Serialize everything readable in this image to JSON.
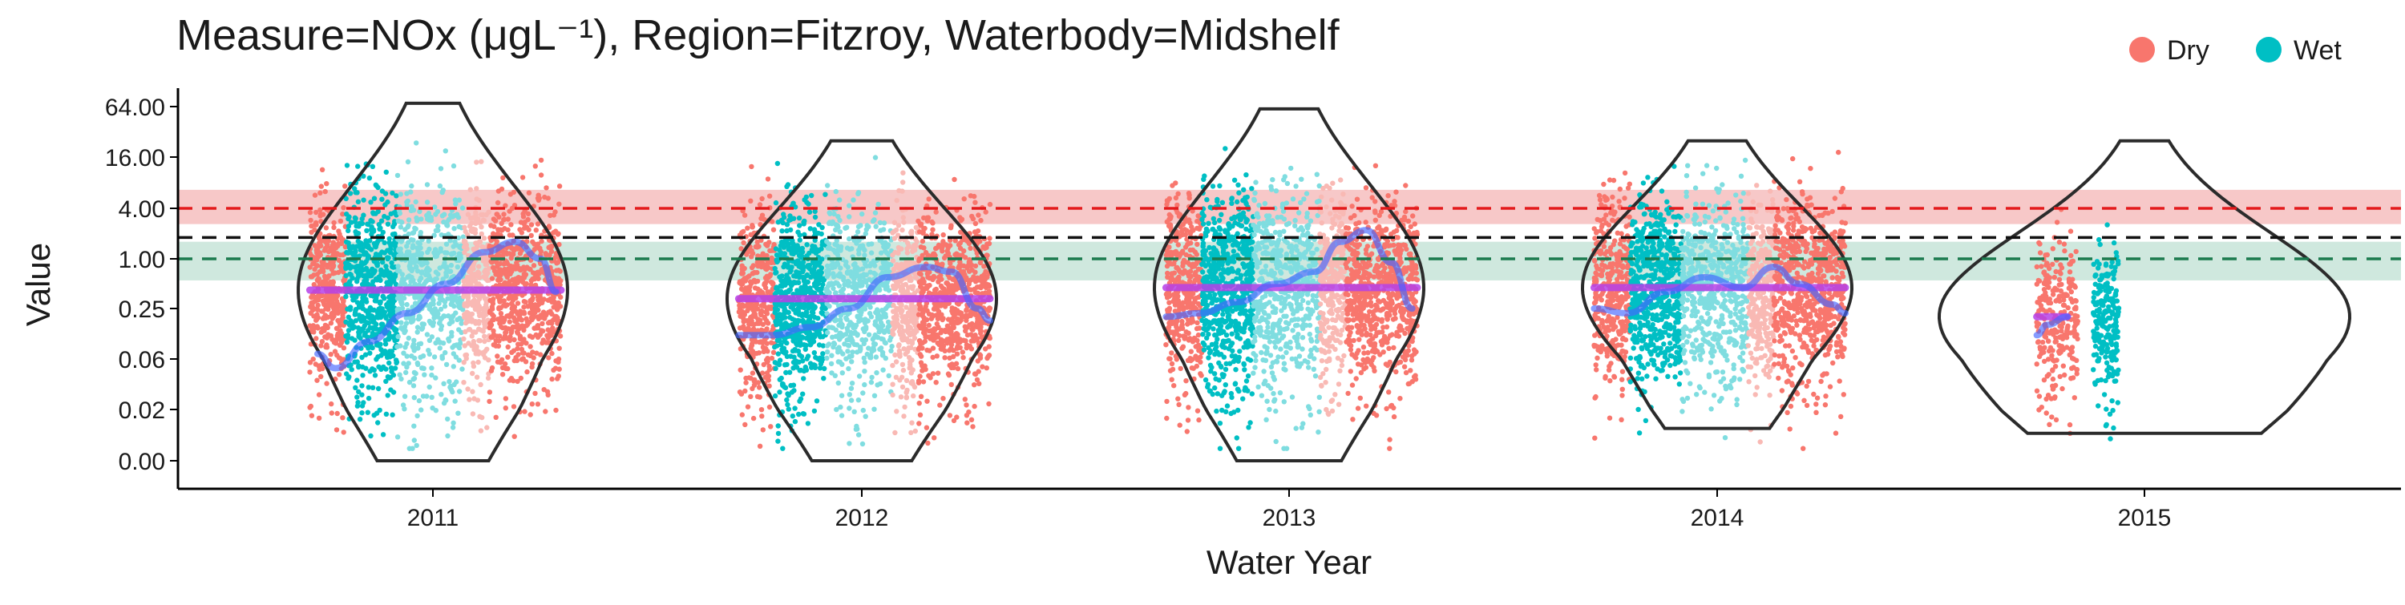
{
  "chart_data": {
    "type": "scatter",
    "title": "Measure=NOx (μgL⁻¹), Region=Fitzroy, Waterbody=Midshelf",
    "xlabel": "Water Year",
    "ylabel": "Value",
    "y_scale": "log4-like (pseudo-log)",
    "y_ticks": [
      "0.00",
      "0.02",
      "0.06",
      "0.25",
      "1.00",
      "4.00",
      "16.00",
      "64.00"
    ],
    "y_tick_values": [
      0,
      0.02,
      0.06,
      0.25,
      1,
      4,
      16,
      64
    ],
    "categories": [
      "2011",
      "2012",
      "2013",
      "2014",
      "2015"
    ],
    "legend": {
      "position": "top-right",
      "entries": [
        {
          "label": "Dry",
          "color": "#F8766D"
        },
        {
          "label": "Wet",
          "color": "#00BFC4"
        }
      ]
    },
    "guidelines": [
      {
        "kind": "dashed",
        "value": 4.0,
        "color": "#e31a1c",
        "band": [
          2.6,
          6.6
        ],
        "band_color": "#f4b6b6"
      },
      {
        "kind": "dashed",
        "value": 1.8,
        "color": "#111111"
      },
      {
        "kind": "dashed",
        "value": 1.0,
        "color": "#1b7a4e",
        "band": [
          0.55,
          1.6
        ],
        "band_color": "#bfe0d3"
      }
    ],
    "series": [
      {
        "year": "2011",
        "median": 0.42,
        "wet_range": [
          0.003,
          70
        ],
        "dry_range": [
          0.003,
          30
        ],
        "violin_range": [
          0.0,
          70
        ],
        "trend": [
          [
            -0.45,
            0.07
          ],
          [
            -0.38,
            0.05
          ],
          [
            -0.25,
            0.1
          ],
          [
            -0.1,
            0.22
          ],
          [
            0.05,
            0.5
          ],
          [
            0.2,
            1.2
          ],
          [
            0.32,
            1.6
          ],
          [
            0.42,
            1.0
          ],
          [
            0.48,
            0.4
          ]
        ]
      },
      {
        "year": "2012",
        "median": 0.33,
        "wet_range": [
          0.003,
          35
        ],
        "dry_range": [
          0.003,
          25
        ],
        "violin_range": [
          0.0,
          25
        ],
        "trend": [
          [
            -0.48,
            0.12
          ],
          [
            -0.35,
            0.12
          ],
          [
            -0.2,
            0.15
          ],
          [
            -0.05,
            0.25
          ],
          [
            0.1,
            0.6
          ],
          [
            0.25,
            0.8
          ],
          [
            0.35,
            0.7
          ],
          [
            0.45,
            0.25
          ],
          [
            0.5,
            0.18
          ]
        ]
      },
      {
        "year": "2013",
        "median": 0.45,
        "wet_range": [
          0.003,
          80
        ],
        "dry_range": [
          0.003,
          30
        ],
        "violin_range": [
          0.0,
          60
        ],
        "trend": [
          [
            -0.48,
            0.2
          ],
          [
            -0.35,
            0.22
          ],
          [
            -0.2,
            0.3
          ],
          [
            -0.05,
            0.5
          ],
          [
            0.1,
            0.7
          ],
          [
            0.2,
            1.6
          ],
          [
            0.3,
            2.2
          ],
          [
            0.4,
            0.9
          ],
          [
            0.48,
            0.25
          ]
        ]
      },
      {
        "year": "2014",
        "median": 0.45,
        "wet_range": [
          0.003,
          25
        ],
        "dry_range": [
          0.003,
          30
        ],
        "violin_range": [
          0.01,
          25
        ],
        "trend": [
          [
            -0.48,
            0.25
          ],
          [
            -0.35,
            0.22
          ],
          [
            -0.2,
            0.4
          ],
          [
            -0.05,
            0.6
          ],
          [
            0.1,
            0.45
          ],
          [
            0.22,
            0.8
          ],
          [
            0.32,
            0.5
          ],
          [
            0.45,
            0.28
          ],
          [
            0.5,
            0.22
          ]
        ]
      },
      {
        "year": "2015",
        "median": 0.2,
        "wet_range": [
          0.006,
          8
        ],
        "dry_range": [
          0.008,
          15
        ],
        "violin_range": [
          0.008,
          25
        ],
        "trend": [
          [
            -0.42,
            0.12
          ],
          [
            -0.38,
            0.16
          ],
          [
            -0.3,
            0.2
          ]
        ]
      }
    ]
  }
}
